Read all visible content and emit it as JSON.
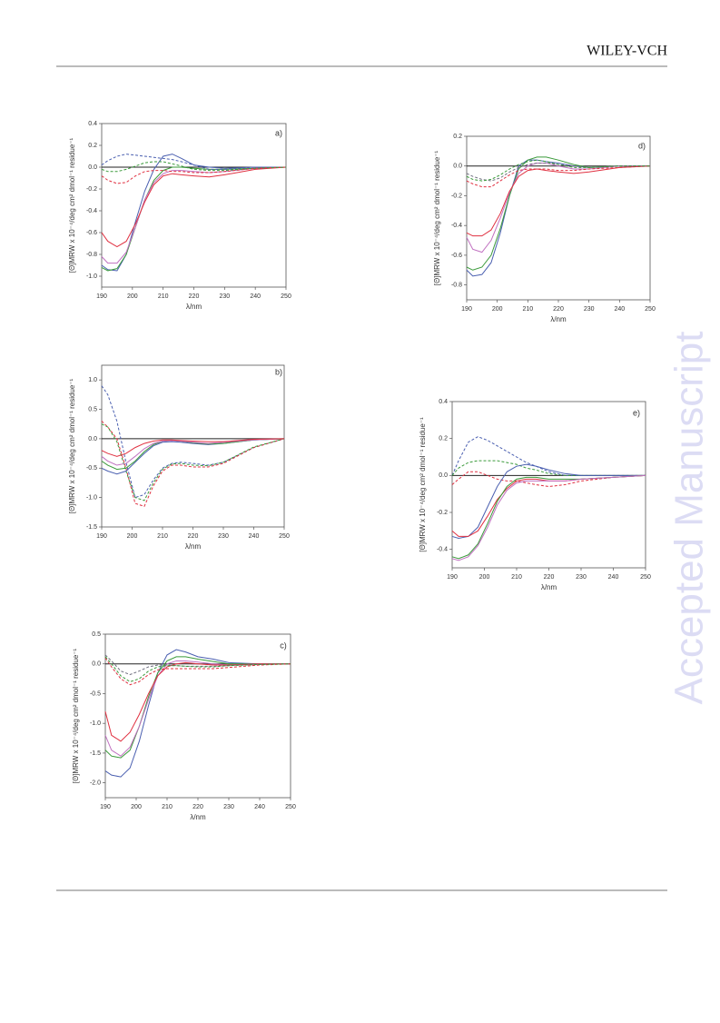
{
  "header": {
    "brand": "WILEY-VCH"
  },
  "watermark": "Accepted Manuscript",
  "chart_data": [
    {
      "type": "line",
      "label": "a)",
      "x_label": "λ/nm",
      "y_label": "[Θ]MRW x 10⁻⁴/deg cm² dmol⁻¹ residue⁻¹",
      "x": [
        190,
        192,
        195,
        198,
        201,
        204,
        207,
        210,
        213,
        216,
        220,
        225,
        230,
        240,
        250
      ],
      "xlim": [
        190,
        250
      ],
      "xticks": [
        190,
        200,
        210,
        220,
        230,
        240,
        250
      ],
      "ylim": [
        -1.1,
        0.4
      ],
      "yticks": [
        0.4,
        0.2,
        {
          "value": 0,
          "label": "0.0"
        },
        -0.2,
        -0.4,
        -0.6,
        -0.8,
        {
          "value": -1,
          "label": "-1.0"
        }
      ],
      "series": [
        {
          "color": "#4a5fb0",
          "dashed": false,
          "values": [
            -0.9,
            -0.94,
            -0.95,
            -0.8,
            -0.5,
            -0.22,
            -0.02,
            0.1,
            0.12,
            0.08,
            0.02,
            0,
            -0.01,
            0,
            0
          ]
        },
        {
          "color": "#3a9a3a",
          "dashed": false,
          "values": [
            -0.92,
            -0.95,
            -0.93,
            -0.8,
            -0.55,
            -0.3,
            -0.12,
            -0.03,
            0,
            0,
            -0.01,
            -0.02,
            -0.02,
            -0.01,
            0
          ]
        },
        {
          "color": "#c070c0",
          "dashed": false,
          "values": [
            -0.82,
            -0.88,
            -0.88,
            -0.78,
            -0.55,
            -0.3,
            -0.14,
            -0.06,
            -0.03,
            -0.03,
            -0.04,
            -0.05,
            -0.04,
            -0.01,
            0
          ]
        },
        {
          "color": "#e03040",
          "dashed": false,
          "values": [
            -0.6,
            -0.68,
            -0.73,
            -0.68,
            -0.52,
            -0.32,
            -0.16,
            -0.08,
            -0.06,
            -0.07,
            -0.08,
            -0.09,
            -0.07,
            -0.02,
            0
          ]
        },
        {
          "color": "#4a5fb0",
          "dashed": true,
          "values": [
            0.02,
            0.06,
            0.1,
            0.12,
            0.11,
            0.1,
            0.09,
            0.08,
            0.07,
            0.05,
            0.02,
            -0.02,
            -0.02,
            0,
            0
          ]
        },
        {
          "color": "#e03040",
          "dashed": true,
          "values": [
            -0.08,
            -0.12,
            -0.15,
            -0.14,
            -0.08,
            -0.04,
            -0.03,
            -0.03,
            -0.04,
            -0.04,
            -0.05,
            -0.05,
            -0.04,
            -0.01,
            0
          ]
        },
        {
          "color": "#3a9a3a",
          "dashed": true,
          "values": [
            -0.02,
            -0.04,
            -0.04,
            -0.02,
            0.01,
            0.04,
            0.05,
            0.05,
            0.03,
            0.01,
            -0.02,
            -0.03,
            -0.03,
            -0.01,
            0
          ]
        }
      ]
    },
    {
      "type": "line",
      "label": "b)",
      "x_label": "λ/nm",
      "y_label": "[Θ]MRW x 10⁻⁴/deg cm² dmol⁻¹ residue⁻¹",
      "x": [
        190,
        192,
        195,
        198,
        201,
        204,
        207,
        210,
        213,
        216,
        220,
        225,
        230,
        240,
        250
      ],
      "xlim": [
        190,
        250
      ],
      "xticks": [
        190,
        200,
        210,
        220,
        230,
        240,
        250
      ],
      "ylim": [
        -1.5,
        1.25
      ],
      "yticks": [
        {
          "value": 1,
          "label": "1.0"
        },
        0.5,
        {
          "value": 0,
          "label": "0.0"
        },
        -0.5,
        {
          "value": -1,
          "label": "-1.0"
        },
        -1.5
      ],
      "series": [
        {
          "color": "#4a5fb0",
          "dashed": true,
          "values": [
            0.9,
            0.75,
            0.3,
            -0.4,
            -1,
            -0.95,
            -0.7,
            -0.5,
            -0.42,
            -0.4,
            -0.42,
            -0.45,
            -0.4,
            -0.15,
            0
          ]
        },
        {
          "color": "#e03040",
          "dashed": true,
          "values": [
            0.3,
            0.2,
            0,
            -0.5,
            -1.1,
            -1.15,
            -0.8,
            -0.55,
            -0.45,
            -0.45,
            -0.48,
            -0.48,
            -0.42,
            -0.15,
            0
          ]
        },
        {
          "color": "#3a9a3a",
          "dashed": true,
          "values": [
            0.25,
            0.2,
            -0.05,
            -0.55,
            -1,
            -1.05,
            -0.75,
            -0.52,
            -0.43,
            -0.42,
            -0.45,
            -0.46,
            -0.4,
            -0.14,
            0
          ]
        },
        {
          "color": "#4a5fb0",
          "dashed": false,
          "values": [
            -0.5,
            -0.55,
            -0.6,
            -0.55,
            -0.4,
            -0.25,
            -0.12,
            -0.06,
            -0.05,
            -0.06,
            -0.08,
            -0.1,
            -0.08,
            -0.02,
            0
          ]
        },
        {
          "color": "#3a9a3a",
          "dashed": false,
          "values": [
            -0.38,
            -0.45,
            -0.52,
            -0.5,
            -0.38,
            -0.22,
            -0.1,
            -0.04,
            -0.03,
            -0.04,
            -0.07,
            -0.09,
            -0.08,
            -0.02,
            0
          ]
        },
        {
          "color": "#c070c0",
          "dashed": false,
          "values": [
            -0.3,
            -0.38,
            -0.45,
            -0.42,
            -0.3,
            -0.17,
            -0.08,
            -0.04,
            -0.03,
            -0.04,
            -0.06,
            -0.08,
            -0.06,
            -0.02,
            0
          ]
        },
        {
          "color": "#e03040",
          "dashed": false,
          "values": [
            -0.2,
            -0.25,
            -0.3,
            -0.25,
            -0.15,
            -0.08,
            -0.04,
            -0.02,
            -0.02,
            -0.03,
            -0.04,
            -0.05,
            -0.05,
            -0.01,
            0
          ]
        }
      ]
    },
    {
      "type": "line",
      "label": "c)",
      "x_label": "λ/nm",
      "y_label": "[Θ]MRW x 10⁻⁴/deg cm² dmol⁻¹ residue⁻¹",
      "x": [
        190,
        192,
        195,
        198,
        201,
        204,
        207,
        210,
        213,
        216,
        220,
        225,
        230,
        240,
        250
      ],
      "xlim": [
        190,
        250
      ],
      "xticks": [
        190,
        200,
        210,
        220,
        230,
        240,
        250
      ],
      "ylim": [
        -2.25,
        0.5
      ],
      "yticks": [
        0.5,
        {
          "value": 0,
          "label": "0.0"
        },
        -0.5,
        {
          "value": -1,
          "label": "-1.0"
        },
        -1.5,
        {
          "value": -2,
          "label": "-2.0"
        }
      ],
      "series": [
        {
          "color": "#4a5fb0",
          "dashed": false,
          "values": [
            -1.8,
            -1.87,
            -1.9,
            -1.75,
            -1.3,
            -0.7,
            -0.15,
            0.15,
            0.24,
            0.2,
            0.12,
            0.08,
            0.02,
            0,
            0
          ]
        },
        {
          "color": "#3a9a3a",
          "dashed": false,
          "values": [
            -1.45,
            -1.55,
            -1.58,
            -1.45,
            -1.05,
            -0.55,
            -0.15,
            0.05,
            0.12,
            0.12,
            0.08,
            0.04,
            0,
            0,
            0
          ]
        },
        {
          "color": "#c070c0",
          "dashed": false,
          "values": [
            -1.2,
            -1.45,
            -1.55,
            -1.4,
            -1.05,
            -0.6,
            -0.2,
            0,
            0.05,
            0.05,
            0.03,
            0,
            -0.02,
            0,
            0
          ]
        },
        {
          "color": "#e03040",
          "dashed": false,
          "values": [
            -0.8,
            -1.2,
            -1.3,
            -1.15,
            -0.85,
            -0.5,
            -0.2,
            -0.05,
            0,
            0.02,
            0,
            -0.02,
            -0.02,
            0,
            0
          ]
        },
        {
          "color": "#707080",
          "dashed": true,
          "values": [
            0.15,
            0.05,
            -0.12,
            -0.18,
            -0.12,
            -0.05,
            -0.02,
            -0.02,
            -0.03,
            -0.04,
            -0.04,
            -0.04,
            -0.03,
            -0.01,
            0
          ]
        },
        {
          "color": "#e03040",
          "dashed": true,
          "values": [
            0.1,
            -0.05,
            -0.25,
            -0.35,
            -0.3,
            -0.18,
            -0.1,
            -0.08,
            -0.08,
            -0.08,
            -0.08,
            -0.08,
            -0.06,
            -0.02,
            0
          ]
        },
        {
          "color": "#3a9a3a",
          "dashed": true,
          "values": [
            0.12,
            0,
            -0.2,
            -0.3,
            -0.25,
            -0.12,
            -0.05,
            -0.03,
            -0.03,
            -0.04,
            -0.05,
            -0.05,
            -0.03,
            -0.01,
            0
          ]
        }
      ]
    },
    {
      "type": "line",
      "label": "d)",
      "x_label": "λ/nm",
      "y_label": "[Θ]MRW x 10⁻⁴/deg cm² dmol⁻¹ residue⁻¹",
      "x": [
        190,
        192,
        195,
        198,
        201,
        204,
        207,
        210,
        213,
        216,
        220,
        225,
        230,
        240,
        250
      ],
      "xlim": [
        190,
        250
      ],
      "xticks": [
        190,
        200,
        210,
        220,
        230,
        240,
        250
      ],
      "ylim": [
        -0.9,
        0.2
      ],
      "yticks": [
        0.2,
        {
          "value": 0,
          "label": "0.0"
        },
        -0.2,
        -0.4,
        -0.6,
        -0.8
      ],
      "series": [
        {
          "color": "#4a5fb0",
          "dashed": false,
          "values": [
            -0.7,
            -0.74,
            -0.73,
            -0.65,
            -0.45,
            -0.2,
            0,
            0.04,
            0.04,
            0.03,
            0.02,
            0,
            -0.01,
            0,
            0
          ]
        },
        {
          "color": "#3a9a3a",
          "dashed": false,
          "values": [
            -0.68,
            -0.7,
            -0.68,
            -0.6,
            -0.42,
            -0.2,
            -0.02,
            0.04,
            0.06,
            0.06,
            0.04,
            0.01,
            -0.01,
            0,
            0
          ]
        },
        {
          "color": "#c070c0",
          "dashed": false,
          "values": [
            -0.48,
            -0.56,
            -0.58,
            -0.5,
            -0.35,
            -0.18,
            -0.05,
            0,
            0.02,
            0.02,
            0,
            -0.02,
            -0.02,
            0,
            0
          ]
        },
        {
          "color": "#e03040",
          "dashed": false,
          "values": [
            -0.45,
            -0.47,
            -0.47,
            -0.43,
            -0.32,
            -0.17,
            -0.07,
            -0.03,
            -0.02,
            -0.03,
            -0.04,
            -0.05,
            -0.04,
            -0.01,
            0
          ]
        },
        {
          "color": "#707080",
          "dashed": true,
          "values": [
            -0.05,
            -0.07,
            -0.09,
            -0.1,
            -0.08,
            -0.04,
            -0.01,
            0.01,
            0.02,
            0.02,
            0.01,
            0,
            -0.01,
            0,
            0
          ]
        },
        {
          "color": "#e03040",
          "dashed": true,
          "values": [
            -0.1,
            -0.12,
            -0.14,
            -0.14,
            -0.1,
            -0.06,
            -0.03,
            -0.02,
            -0.02,
            -0.02,
            -0.03,
            -0.03,
            -0.02,
            -0.01,
            0
          ]
        },
        {
          "color": "#3a9a3a",
          "dashed": true,
          "values": [
            -0.07,
            -0.09,
            -0.1,
            -0.09,
            -0.06,
            -0.02,
            0.01,
            0.03,
            0.04,
            0.03,
            0.01,
            -0.01,
            -0.01,
            0,
            0
          ]
        }
      ]
    },
    {
      "type": "line",
      "label": "e)",
      "x_label": "λ/nm",
      "y_label": "[Θ]MRW x 10⁻⁴/deg cm² dmol⁻¹ residue⁻¹",
      "x": [
        190,
        192,
        195,
        198,
        201,
        204,
        207,
        210,
        213,
        216,
        220,
        225,
        230,
        240,
        250
      ],
      "xlim": [
        190,
        250
      ],
      "xticks": [
        190,
        200,
        210,
        220,
        230,
        240,
        250
      ],
      "ylim": [
        -0.5,
        0.4
      ],
      "yticks": [
        0.4,
        0.2,
        {
          "value": 0,
          "label": "0.0"
        },
        -0.2,
        -0.4
      ],
      "series": [
        {
          "color": "#4a5fb0",
          "dashed": true,
          "values": [
            0,
            0.08,
            0.18,
            0.21,
            0.19,
            0.16,
            0.13,
            0.1,
            0.07,
            0.05,
            0.02,
            0,
            0,
            0,
            0
          ]
        },
        {
          "color": "#3a9a3a",
          "dashed": true,
          "values": [
            0,
            0.04,
            0.07,
            0.08,
            0.08,
            0.08,
            0.07,
            0.06,
            0.04,
            0.03,
            0.01,
            0,
            0,
            0,
            0
          ]
        },
        {
          "color": "#e03040",
          "dashed": true,
          "values": [
            -0.05,
            -0.02,
            0.02,
            0.02,
            0,
            -0.02,
            -0.03,
            -0.03,
            -0.04,
            -0.05,
            -0.06,
            -0.05,
            -0.03,
            -0.01,
            0
          ]
        },
        {
          "color": "#4a5fb0",
          "dashed": false,
          "values": [
            -0.33,
            -0.34,
            -0.33,
            -0.28,
            -0.17,
            -0.06,
            0.02,
            0.05,
            0.06,
            0.05,
            0.03,
            0.01,
            0,
            0,
            0
          ]
        },
        {
          "color": "#e03040",
          "dashed": false,
          "values": [
            -0.3,
            -0.33,
            -0.33,
            -0.3,
            -0.22,
            -0.13,
            -0.07,
            -0.03,
            -0.02,
            -0.02,
            -0.03,
            -0.03,
            -0.02,
            -0.01,
            0
          ]
        },
        {
          "color": "#3a9a3a",
          "dashed": false,
          "values": [
            -0.44,
            -0.45,
            -0.43,
            -0.37,
            -0.26,
            -0.14,
            -0.06,
            -0.02,
            -0.01,
            -0.01,
            -0.02,
            -0.02,
            -0.02,
            -0.01,
            0
          ]
        },
        {
          "color": "#c070c0",
          "dashed": false,
          "values": [
            -0.45,
            -0.46,
            -0.44,
            -0.38,
            -0.28,
            -0.16,
            -0.08,
            -0.04,
            -0.03,
            -0.03,
            -0.03,
            -0.03,
            -0.02,
            -0.01,
            0
          ]
        }
      ]
    }
  ]
}
